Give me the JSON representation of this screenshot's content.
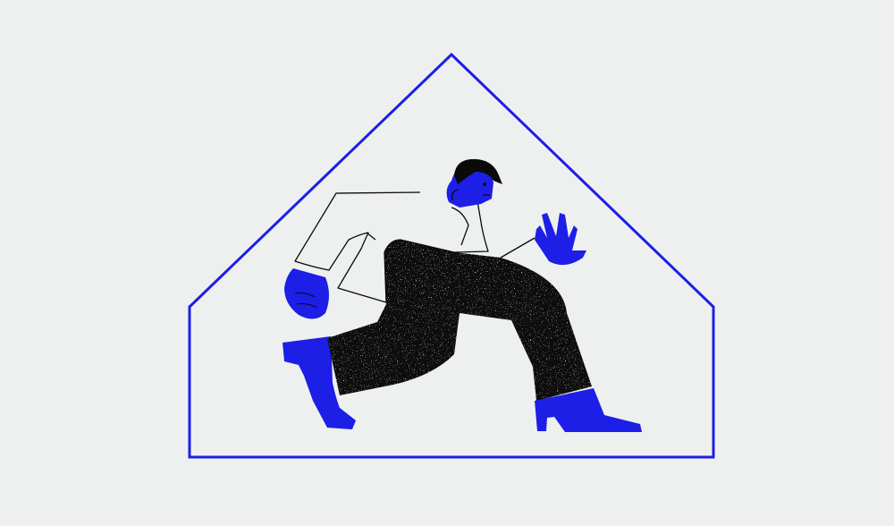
{
  "colors": {
    "background": "#eef0f0",
    "accent_blue": "#1d1ee6",
    "ink_black": "#0a0a0a",
    "shirt_white": "#eef0f0"
  },
  "icons": {
    "frame": "house-outline-icon",
    "figure": "running-person-icon"
  }
}
